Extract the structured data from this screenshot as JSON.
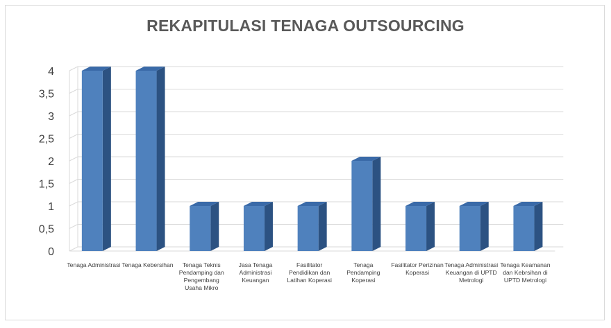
{
  "chart_data": {
    "type": "bar",
    "title": "REKAPITULASI TENAGA OUTSOURCING",
    "xlabel": "",
    "ylabel": "",
    "categories": [
      "Tenaga Administrasi",
      "Tenaga Kebersihan",
      "Tenaga Teknis Pendamping dan Pengembang Usaha Mikro",
      "Jasa Tenaga Administrasi Keuangan",
      "Fasilitator Pendidikan dan Latihan Koperasi",
      "Tenaga Pendamping Koperasi",
      "Fasilitator Perizinan Koperasi",
      "Tenaga Administrasi Keuangan di UPTD Metrologi",
      "Tenaga Keamanan dan Kebrsihan di UPTD Metrologi"
    ],
    "values": [
      4,
      4,
      1,
      1,
      1,
      2,
      1,
      1,
      1
    ],
    "ylim": [
      0,
      4
    ],
    "yticks": [
      "0",
      "0,5",
      "1",
      "1,5",
      "2",
      "2,5",
      "3",
      "3,5",
      "4"
    ],
    "grid": true,
    "style": "3d-column",
    "colors": {
      "bar_front": "#4f81bd",
      "bar_side": "#2c5282",
      "bar_top": "#3a6aa8",
      "grid": "#d9d9d9",
      "text": "#404040"
    }
  }
}
